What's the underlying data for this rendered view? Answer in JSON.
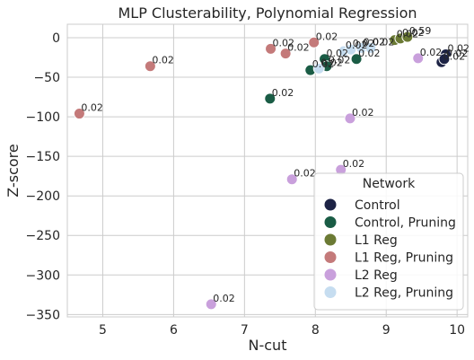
{
  "chart_data": {
    "type": "scatter",
    "title": "MLP Clusterability, Polynomial Regression",
    "xlabel": "N-cut",
    "ylabel": "Z-score",
    "xlim": [
      4.5,
      10.15
    ],
    "ylim": [
      -353,
      17
    ],
    "xticks": [
      5,
      6,
      7,
      8,
      9,
      10
    ],
    "yticks": [
      0,
      -50,
      -100,
      -150,
      -200,
      -250,
      -300,
      -350
    ],
    "grid": true,
    "legend": {
      "title": "Network",
      "placement": "lower-right"
    },
    "series": [
      {
        "name": "Control",
        "color": "#1d2345",
        "points": [
          {
            "x": 9.84,
            "y": -21,
            "label": "0.02"
          },
          {
            "x": 9.78,
            "y": -31,
            "label": "0.02"
          },
          {
            "x": 9.82,
            "y": -27,
            "label": "0.02"
          }
        ]
      },
      {
        "name": "Control, Pruning",
        "color": "#1a5c45",
        "points": [
          {
            "x": 7.36,
            "y": -77,
            "label": "0.02"
          },
          {
            "x": 7.93,
            "y": -41,
            "label": "0.02"
          },
          {
            "x": 8.13,
            "y": -27,
            "label": "0.02"
          },
          {
            "x": 8.16,
            "y": -36,
            "label": "0.02"
          },
          {
            "x": 8.58,
            "y": -27,
            "label": "0.02"
          }
        ]
      },
      {
        "name": "L1 Reg",
        "color": "#6b7a34",
        "points": [
          {
            "x": 9.12,
            "y": -3,
            "label": "0.02"
          },
          {
            "x": 9.2,
            "y": -1,
            "label": "0.02"
          },
          {
            "x": 9.3,
            "y": 1,
            "label": "0.59"
          }
        ]
      },
      {
        "name": "L1 Reg, Pruning",
        "color": "#c47a7a",
        "points": [
          {
            "x": 4.67,
            "y": -96,
            "label": "0.02"
          },
          {
            "x": 5.67,
            "y": -36,
            "label": "0.02"
          },
          {
            "x": 7.37,
            "y": -14,
            "label": "0.02"
          },
          {
            "x": 7.58,
            "y": -20,
            "label": "0.02"
          },
          {
            "x": 7.98,
            "y": -6,
            "label": "0.02"
          }
        ]
      },
      {
        "name": "L2 Reg",
        "color": "#c9a0dc",
        "points": [
          {
            "x": 6.53,
            "y": -337,
            "label": "0.02"
          },
          {
            "x": 7.67,
            "y": -179,
            "label": "0.02"
          },
          {
            "x": 8.36,
            "y": -167,
            "label": "0.02"
          },
          {
            "x": 8.49,
            "y": -102,
            "label": "0.02"
          },
          {
            "x": 9.45,
            "y": -26,
            "label": "0.02"
          }
        ]
      },
      {
        "name": "L2 Reg, Pruning",
        "color": "#c6ddf0",
        "points": [
          {
            "x": 8.05,
            "y": -39,
            "label": "0.02"
          },
          {
            "x": 8.4,
            "y": -17,
            "label": "0.02"
          },
          {
            "x": 8.5,
            "y": -15,
            "label": "0.02"
          },
          {
            "x": 8.65,
            "y": -13,
            "label": "0.02"
          },
          {
            "x": 8.78,
            "y": -13,
            "label": "0.02"
          }
        ]
      }
    ]
  }
}
